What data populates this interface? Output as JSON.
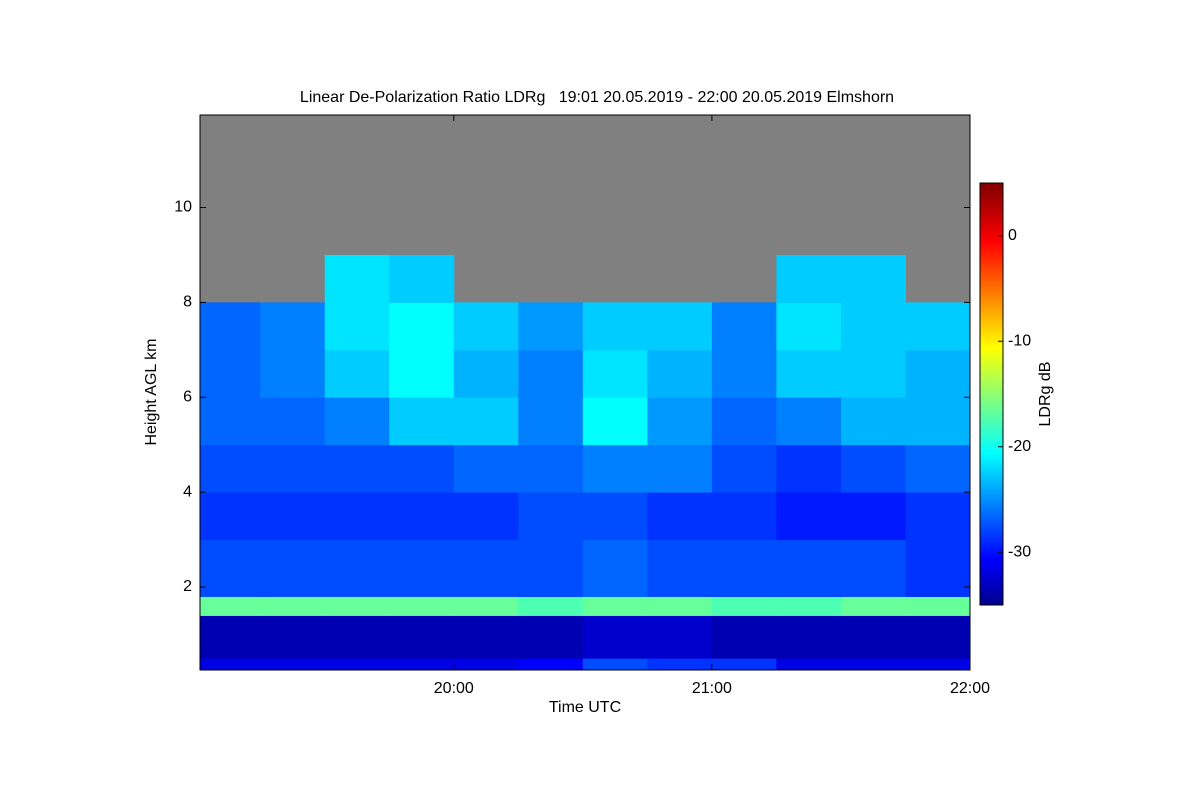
{
  "chart_data": {
    "type": "heatmap",
    "title": "Linear De-Polarization Ratio LDRg   19:01 20.05.2019 - 22:00 20.05.2019 Elmshorn",
    "xlabel": "Time UTC",
    "ylabel": "Height AGL km",
    "colorbar_label": "LDRg dB",
    "colormap": "jet",
    "missing_color": "#808080",
    "x_bins": [
      19.0167,
      19.25,
      19.5,
      19.75,
      20,
      20.25,
      20.5,
      20.75,
      21,
      21.25,
      21.5,
      21.75,
      22
    ],
    "y_bins": [
      0.25,
      0.5,
      1.4,
      1.8,
      3,
      4,
      5,
      6,
      7,
      8,
      9,
      11.95
    ],
    "z": [
      [
        -31,
        -31,
        -31,
        -31,
        -31,
        -30,
        -27,
        -28,
        -28,
        -31,
        -31,
        -31
      ],
      [
        -33,
        -33,
        -33,
        -33,
        -33,
        -33,
        -32,
        -32,
        -33,
        -33,
        -33,
        -33
      ],
      [
        -16,
        -16,
        -16,
        -16,
        -16,
        -17,
        -16,
        -16,
        -17,
        -17,
        -16,
        -16
      ],
      [
        -27,
        -27,
        -27,
        -27,
        -27,
        -27,
        -26,
        -27,
        -27,
        -27,
        -27,
        -28
      ],
      [
        -28,
        -28,
        -28,
        -28,
        -28,
        -27,
        -27,
        -28,
        -28,
        -29,
        -29,
        -28
      ],
      [
        -27,
        -27,
        -27,
        -27,
        -26,
        -26,
        -25,
        -25,
        -27,
        -28,
        -27,
        -26
      ],
      [
        -26,
        -26,
        -25,
        -22,
        -22,
        -25,
        -20,
        -24,
        -26,
        -25,
        -23,
        -23
      ],
      [
        -26,
        -25,
        -22,
        -20,
        -23,
        -25,
        -21,
        -23,
        -25,
        -22,
        -22,
        -23
      ],
      [
        -26,
        -25,
        -21,
        -20,
        -22,
        -24,
        -22,
        -22,
        -25,
        -21,
        -22,
        -22
      ],
      [
        null,
        null,
        -21,
        -22,
        null,
        null,
        null,
        null,
        null,
        -22,
        -22,
        null
      ],
      [
        null,
        null,
        null,
        null,
        null,
        null,
        null,
        null,
        null,
        null,
        null,
        null
      ]
    ],
    "xlim": [
      19.0167,
      22
    ],
    "ylim": [
      0.25,
      11.95
    ],
    "xticks": [
      {
        "value": 20,
        "label": "20:00"
      },
      {
        "value": 21,
        "label": "21:00"
      },
      {
        "value": 22,
        "label": "22:00"
      }
    ],
    "yticks": [
      2,
      4,
      6,
      8,
      10
    ],
    "clim": [
      -35,
      5
    ],
    "cticks": [
      0,
      -10,
      -20,
      -30
    ]
  }
}
